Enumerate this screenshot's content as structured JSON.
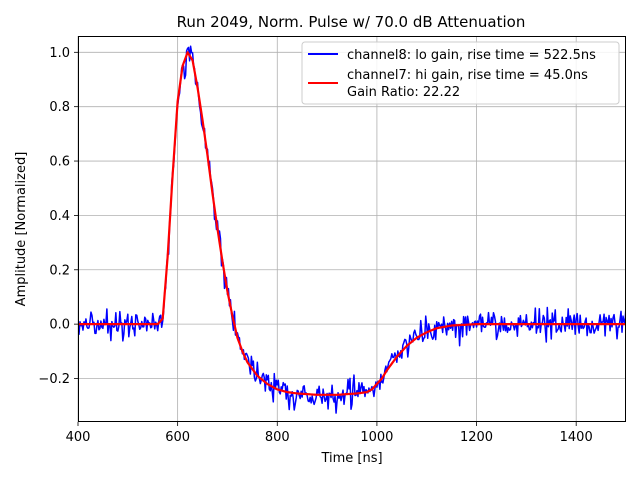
{
  "chart_data": {
    "type": "line",
    "title": "Run 2049, Norm. Pulse w/ 70.0 dB Attenuation",
    "xlabel": "Time [ns]",
    "ylabel": "Amplitude [Normalized]",
    "xlim": [
      400,
      1500
    ],
    "ylim": [
      -0.36,
      1.06
    ],
    "xticks": [
      400,
      600,
      800,
      1000,
      1200,
      1400
    ],
    "xtick_labels": [
      "400",
      "600",
      "800",
      "1000",
      "1200",
      "1400"
    ],
    "yticks": [
      -0.2,
      0.0,
      0.2,
      0.4,
      0.6,
      0.8,
      1.0
    ],
    "ytick_labels": [
      "−0.2",
      "0.0",
      "0.2",
      "0.4",
      "0.6",
      "0.8",
      "1.0"
    ],
    "grid": true,
    "legend_position": "top-right",
    "series": [
      {
        "name": "channel8: lo gain, rise time = 522.5ns",
        "color": "#0000ff",
        "noise": 0.025,
        "x": [
          400,
          560,
          570,
          580,
          590,
          600,
          610,
          620,
          630,
          640,
          650,
          660,
          670,
          680,
          690,
          700,
          710,
          720,
          730,
          740,
          760,
          780,
          800,
          820,
          840,
          880,
          920,
          960,
          980,
          990,
          1000,
          1010,
          1020,
          1040,
          1060,
          1080,
          1100,
          1120,
          1150,
          1200,
          1250,
          1300,
          1500
        ],
        "y": [
          0.0,
          0.0,
          0.02,
          0.25,
          0.55,
          0.82,
          0.95,
          1.0,
          0.97,
          0.87,
          0.75,
          0.62,
          0.48,
          0.35,
          0.23,
          0.12,
          0.03,
          -0.05,
          -0.1,
          -0.14,
          -0.19,
          -0.22,
          -0.24,
          -0.25,
          -0.255,
          -0.26,
          -0.26,
          -0.255,
          -0.25,
          -0.24,
          -0.22,
          -0.2,
          -0.17,
          -0.12,
          -0.08,
          -0.05,
          -0.03,
          -0.015,
          -0.005,
          0.0,
          0.0,
          0.0,
          0.0
        ]
      },
      {
        "name": "channel7: hi gain, rise time = 45.0ns",
        "color": "#ff0000",
        "noise": 0.0,
        "x": [
          400,
          560,
          570,
          580,
          590,
          600,
          610,
          620,
          630,
          640,
          650,
          660,
          670,
          680,
          690,
          700,
          710,
          720,
          730,
          740,
          760,
          780,
          800,
          820,
          840,
          880,
          920,
          960,
          980,
          990,
          1000,
          1010,
          1020,
          1040,
          1060,
          1080,
          1100,
          1120,
          1150,
          1200,
          1250,
          1300,
          1500
        ],
        "y": [
          0.0,
          0.0,
          0.02,
          0.25,
          0.55,
          0.82,
          0.95,
          1.0,
          0.97,
          0.87,
          0.75,
          0.62,
          0.48,
          0.35,
          0.23,
          0.12,
          0.03,
          -0.05,
          -0.1,
          -0.14,
          -0.19,
          -0.22,
          -0.24,
          -0.25,
          -0.255,
          -0.26,
          -0.26,
          -0.255,
          -0.25,
          -0.24,
          -0.22,
          -0.2,
          -0.17,
          -0.12,
          -0.08,
          -0.05,
          -0.03,
          -0.015,
          -0.005,
          0.0,
          0.0,
          0.0,
          0.0
        ]
      }
    ],
    "legend_extra": "Gain Ratio: 22.22"
  }
}
